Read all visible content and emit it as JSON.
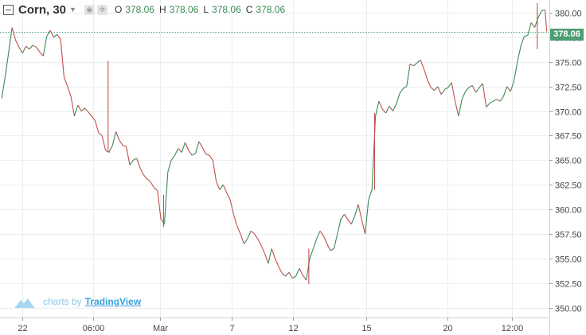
{
  "legend": {
    "symbol": "Corn, 30",
    "open_label": "O",
    "open": "378.06",
    "high_label": "H",
    "high": "378.06",
    "low_label": "L",
    "low": "378.06",
    "close_label": "C",
    "close": "378.06"
  },
  "branding": {
    "prefix": "charts by",
    "name": "TradingView"
  },
  "colors": {
    "up": "#3a8a55",
    "down": "#c0504d",
    "badge": "#4e9d72",
    "last_price_line": "#4e9d72",
    "grid": "#e9eef0"
  },
  "chart_data": {
    "type": "line",
    "title": "Corn, 30",
    "y_axis": {
      "ticks": [
        "350.00",
        "352.50",
        "355.00",
        "357.50",
        "360.00",
        "362.50",
        "365.00",
        "367.50",
        "370.00",
        "372.50",
        "375.00",
        "377.50",
        "380.00"
      ],
      "min": 349.0,
      "max": 381.3
    },
    "x_axis": {
      "ticks": [
        {
          "label": "22",
          "x": 0.4
        },
        {
          "label": "06:00",
          "x": 8.6
        },
        {
          "label": "Mar",
          "x": 16.3
        },
        {
          "label": "7",
          "x": 24.6
        },
        {
          "label": "12",
          "x": 31.7
        },
        {
          "label": "15",
          "x": 40.1
        },
        {
          "label": "20",
          "x": 49.5
        },
        {
          "label": "12:00",
          "x": 57.0
        }
      ],
      "min": -2.2,
      "max": 61.3
    },
    "last_price": 378.06,
    "series": [
      {
        "points": [
          [
            -2.0,
            371.3
          ],
          [
            -1.6,
            373.5
          ],
          [
            -1.2,
            376.0
          ],
          [
            -0.8,
            378.5
          ],
          [
            -0.4,
            377.2
          ],
          [
            0.0,
            376.5
          ],
          [
            0.4,
            375.9
          ],
          [
            0.8,
            376.6
          ],
          [
            1.2,
            376.3
          ],
          [
            1.6,
            376.7
          ],
          [
            2.0,
            376.5
          ],
          [
            2.4,
            376.0
          ],
          [
            2.8,
            375.6
          ],
          [
            3.2,
            377.6
          ],
          [
            3.6,
            378.2
          ],
          [
            4.0,
            377.5
          ],
          [
            4.4,
            377.8
          ],
          [
            4.8,
            377.3
          ],
          [
            5.2,
            373.5
          ],
          [
            5.6,
            372.5
          ],
          [
            6.0,
            371.5
          ],
          [
            6.4,
            369.5
          ],
          [
            6.8,
            370.6
          ],
          [
            7.2,
            370.0
          ],
          [
            7.6,
            370.3
          ],
          [
            8.0,
            369.9
          ],
          [
            8.4,
            369.5
          ],
          [
            8.8,
            369.0
          ],
          [
            9.2,
            367.8
          ],
          [
            9.6,
            367.5
          ],
          [
            10.0,
            366.0
          ],
          [
            10.4,
            365.8
          ],
          [
            10.8,
            366.5
          ],
          [
            11.2,
            367.9
          ],
          [
            11.6,
            367.0
          ],
          [
            12.0,
            366.5
          ],
          [
            12.4,
            366.4
          ],
          [
            12.8,
            364.5
          ],
          [
            13.2,
            365.0
          ],
          [
            13.6,
            365.2
          ],
          [
            14.0,
            364.2
          ],
          [
            14.4,
            363.5
          ],
          [
            14.8,
            363.1
          ],
          [
            15.2,
            362.8
          ],
          [
            15.6,
            362.2
          ],
          [
            16.0,
            361.9
          ],
          [
            16.4,
            359.0
          ],
          [
            16.8,
            358.5
          ],
          [
            17.2,
            363.8
          ],
          [
            17.6,
            365.0
          ],
          [
            18.0,
            365.5
          ],
          [
            18.4,
            366.2
          ],
          [
            18.8,
            365.8
          ],
          [
            19.2,
            366.8
          ],
          [
            19.6,
            366.0
          ],
          [
            20.0,
            365.5
          ],
          [
            20.4,
            365.7
          ],
          [
            20.8,
            366.9
          ],
          [
            21.2,
            366.3
          ],
          [
            21.6,
            365.6
          ],
          [
            22.0,
            365.5
          ],
          [
            22.4,
            365.0
          ],
          [
            22.8,
            362.8
          ],
          [
            23.2,
            362.0
          ],
          [
            23.6,
            362.5
          ],
          [
            24.0,
            361.7
          ],
          [
            24.4,
            361.0
          ],
          [
            24.8,
            359.5
          ],
          [
            25.2,
            358.3
          ],
          [
            25.6,
            357.5
          ],
          [
            26.0,
            356.5
          ],
          [
            26.4,
            357.0
          ],
          [
            26.8,
            357.8
          ],
          [
            27.2,
            357.5
          ],
          [
            27.6,
            357.0
          ],
          [
            28.0,
            356.3
          ],
          [
            28.4,
            355.5
          ],
          [
            28.8,
            354.5
          ],
          [
            29.2,
            356.0
          ],
          [
            29.6,
            355.0
          ],
          [
            30.0,
            354.2
          ],
          [
            30.4,
            353.5
          ],
          [
            30.8,
            353.2
          ],
          [
            31.2,
            353.6
          ],
          [
            31.6,
            353.0
          ],
          [
            32.0,
            353.2
          ],
          [
            32.4,
            354.0
          ],
          [
            32.8,
            353.3
          ],
          [
            33.2,
            352.8
          ],
          [
            33.6,
            355.0
          ],
          [
            34.0,
            356.0
          ],
          [
            34.4,
            357.0
          ],
          [
            34.8,
            357.8
          ],
          [
            35.2,
            357.3
          ],
          [
            35.6,
            356.5
          ],
          [
            36.0,
            355.8
          ],
          [
            36.4,
            356.0
          ],
          [
            36.8,
            357.5
          ],
          [
            37.2,
            359.0
          ],
          [
            37.6,
            359.5
          ],
          [
            38.0,
            359.0
          ],
          [
            38.4,
            358.5
          ],
          [
            38.8,
            359.3
          ],
          [
            39.2,
            360.5
          ],
          [
            39.6,
            359.0
          ],
          [
            40.0,
            357.5
          ],
          [
            40.4,
            361.0
          ],
          [
            40.8,
            362.0
          ],
          [
            41.2,
            369.5
          ],
          [
            41.6,
            371.0
          ],
          [
            42.0,
            370.2
          ],
          [
            42.4,
            369.8
          ],
          [
            42.8,
            370.5
          ],
          [
            43.2,
            370.0
          ],
          [
            43.6,
            370.7
          ],
          [
            44.0,
            371.8
          ],
          [
            44.4,
            372.3
          ],
          [
            44.8,
            372.5
          ],
          [
            45.2,
            374.8
          ],
          [
            45.6,
            374.6
          ],
          [
            46.0,
            374.9
          ],
          [
            46.4,
            375.2
          ],
          [
            46.8,
            374.3
          ],
          [
            47.2,
            373.2
          ],
          [
            47.6,
            372.4
          ],
          [
            48.0,
            372.1
          ],
          [
            48.4,
            372.5
          ],
          [
            48.8,
            371.7
          ],
          [
            49.2,
            372.2
          ],
          [
            49.6,
            372.4
          ],
          [
            50.0,
            372.9
          ],
          [
            50.4,
            371.0
          ],
          [
            50.8,
            369.5
          ],
          [
            51.2,
            371.2
          ],
          [
            51.6,
            372.0
          ],
          [
            52.0,
            372.4
          ],
          [
            52.4,
            372.6
          ],
          [
            52.8,
            371.9
          ],
          [
            53.2,
            372.4
          ],
          [
            53.6,
            372.8
          ],
          [
            54.0,
            370.4
          ],
          [
            54.4,
            370.8
          ],
          [
            54.8,
            371.0
          ],
          [
            55.2,
            371.2
          ],
          [
            55.6,
            371.0
          ],
          [
            56.0,
            371.5
          ],
          [
            56.4,
            372.5
          ],
          [
            56.8,
            372.0
          ],
          [
            57.2,
            373.0
          ],
          [
            57.6,
            375.0
          ],
          [
            58.0,
            376.6
          ],
          [
            58.4,
            377.6
          ],
          [
            58.8,
            377.7
          ],
          [
            59.2,
            379.0
          ],
          [
            59.6,
            378.5
          ],
          [
            60.0,
            379.5
          ],
          [
            60.4,
            380.2
          ],
          [
            60.8,
            380.3
          ],
          [
            61.0,
            378.1
          ]
        ]
      }
    ],
    "spikes": [
      {
        "x": 10.3,
        "low": 365.8,
        "high": 375.1
      },
      {
        "x": 41.1,
        "low": 362.0,
        "high": 369.8
      },
      {
        "x": 16.7,
        "low": 358.2,
        "high": 361.5
      },
      {
        "x": 33.5,
        "low": 352.4,
        "high": 356.0
      },
      {
        "x": 59.9,
        "low": 376.3,
        "high": 381.0
      }
    ]
  }
}
